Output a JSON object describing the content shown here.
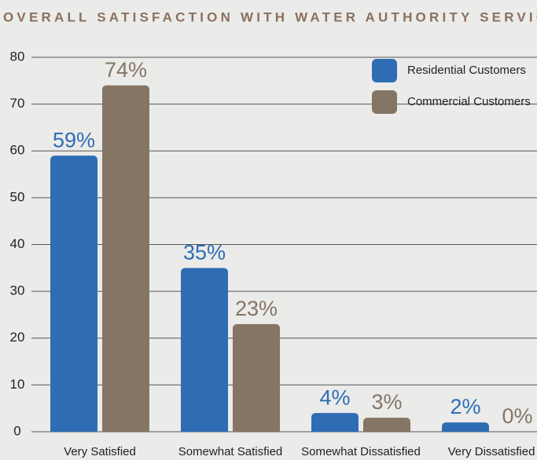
{
  "chart_data": {
    "type": "bar",
    "title": "OVERALL SATISFACTION WITH WATER AUTHORITY SERVICES",
    "categories": [
      "Very Satisfied",
      "Somewhat Satisfied",
      "Somewhat Dissatisfied",
      "Very Dissatisfied"
    ],
    "series": [
      {
        "name": "Residential Customers",
        "color": "#2e6db4",
        "values": [
          59,
          35,
          4,
          2
        ],
        "value_labels": [
          "59%",
          "35%",
          "4%",
          "2%"
        ]
      },
      {
        "name": "Commercial Customers",
        "color": "#857564",
        "values": [
          74,
          23,
          3,
          0
        ],
        "value_labels": [
          "74%",
          "23%",
          "3%",
          "0%"
        ]
      }
    ],
    "ylim": [
      0,
      80
    ],
    "yticks": [
      0,
      10,
      20,
      30,
      40,
      50,
      60,
      70,
      80
    ],
    "grid": true,
    "legend": "upper right"
  }
}
